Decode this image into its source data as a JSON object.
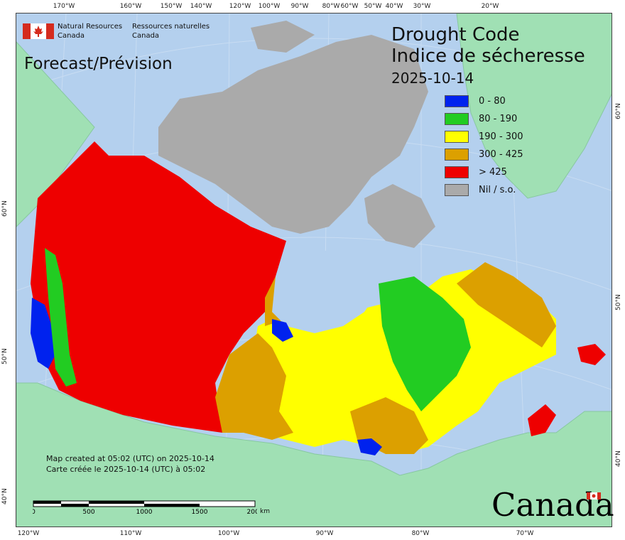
{
  "map": {
    "agency_en": "Natural Resources",
    "agency_en2": "Canada",
    "agency_fr": "Ressources naturelles",
    "agency_fr2": "Canada",
    "forecast_label": "Forecast/Prévision",
    "title_en": "Drought Code",
    "title_fr": "Indice de sécheresse",
    "date": "2025-10-14",
    "created_en": "Map created at 05:02 (UTC) on 2025-10-14",
    "created_fr": "Carte créée le 2025-10-14 (UTC) à 05:02",
    "wordmark": "Canada"
  },
  "legend": [
    {
      "label": "0 - 80",
      "color": "#0022ee"
    },
    {
      "label": "80 - 190",
      "color": "#22cc22"
    },
    {
      "label": "190 - 300",
      "color": "#ffff00"
    },
    {
      "label": "300 - 425",
      "color": "#dca000"
    },
    {
      "label": "> 425",
      "color": "#ee0000"
    },
    {
      "label": "Nil / s.o.",
      "color": "#aaaaaa"
    }
  ],
  "scale": {
    "labels": [
      "0",
      "500",
      "1000",
      "1500",
      "2000"
    ],
    "unit": "km"
  },
  "graticule": {
    "top": [
      "170°W",
      "160°W",
      "150°W",
      "140°W",
      "120°W",
      "100°W",
      "90°W",
      "80°W",
      "60°W",
      "50°W",
      "40°W",
      "30°W",
      "20°W"
    ],
    "bottom": [
      "120°W",
      "110°W",
      "100°W",
      "90°W",
      "80°W",
      "70°W"
    ],
    "left": [
      "60°N",
      "50°N",
      "40°N"
    ],
    "right": [
      "60°N",
      "50°N",
      "40°N"
    ]
  },
  "colors": {
    "ocean": "#b4d0ee",
    "foreign_land": "#a0e0b4",
    "nil": "#aaaaaa"
  }
}
